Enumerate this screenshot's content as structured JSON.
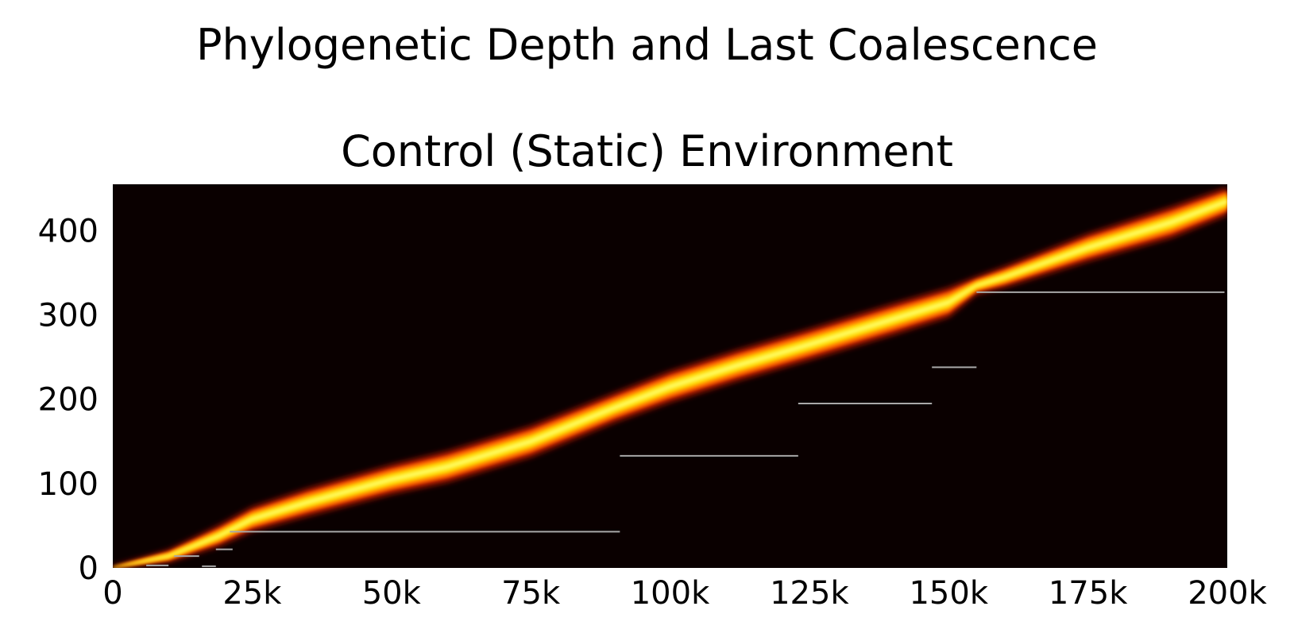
{
  "chart_data": {
    "type": "heatmap",
    "title": "Phylogenetic Depth and Last Coalescence",
    "subtitle": "Control (Static) Environment",
    "xlabel": "",
    "ylabel": "",
    "xlim": [
      0,
      200000
    ],
    "ylim": [
      0,
      455
    ],
    "x_ticks": [
      {
        "value": 0,
        "label": "0"
      },
      {
        "value": 25000,
        "label": "25k"
      },
      {
        "value": 50000,
        "label": "50k"
      },
      {
        "value": 75000,
        "label": "75k"
      },
      {
        "value": 100000,
        "label": "100k"
      },
      {
        "value": 125000,
        "label": "125k"
      },
      {
        "value": 150000,
        "label": "150k"
      },
      {
        "value": 175000,
        "label": "175k"
      },
      {
        "value": 200000,
        "label": "200k"
      }
    ],
    "y_ticks": [
      {
        "value": 0,
        "label": "0"
      },
      {
        "value": 100,
        "label": "100"
      },
      {
        "value": 200,
        "label": "200"
      },
      {
        "value": 300,
        "label": "300"
      },
      {
        "value": 400,
        "label": "400"
      }
    ],
    "grid": false,
    "colors": {
      "background": "#0a0000",
      "band_outer": "#c41a00",
      "band_mid": "#ff6a00",
      "band_core": "#ffd400",
      "band_peak": "#ffff66",
      "coalescence_line": "#a8a8a8"
    },
    "depth_band": [
      {
        "x": 0,
        "center": 0,
        "spread": 2
      },
      {
        "x": 10000,
        "center": 14,
        "spread": 7
      },
      {
        "x": 19000,
        "center": 38,
        "spread": 12
      },
      {
        "x": 25000,
        "center": 58,
        "spread": 14
      },
      {
        "x": 35000,
        "center": 78,
        "spread": 16
      },
      {
        "x": 50000,
        "center": 105,
        "spread": 17
      },
      {
        "x": 60000,
        "center": 120,
        "spread": 18
      },
      {
        "x": 75000,
        "center": 150,
        "spread": 18
      },
      {
        "x": 90000,
        "center": 190,
        "spread": 17
      },
      {
        "x": 100000,
        "center": 215,
        "spread": 18
      },
      {
        "x": 112000,
        "center": 240,
        "spread": 18
      },
      {
        "x": 125000,
        "center": 265,
        "spread": 18
      },
      {
        "x": 140000,
        "center": 295,
        "spread": 18
      },
      {
        "x": 150000,
        "center": 315,
        "spread": 17
      },
      {
        "x": 155000,
        "center": 335,
        "spread": 10
      },
      {
        "x": 160000,
        "center": 345,
        "spread": 12
      },
      {
        "x": 175000,
        "center": 380,
        "spread": 16
      },
      {
        "x": 190000,
        "center": 410,
        "spread": 18
      },
      {
        "x": 200000,
        "center": 435,
        "spread": 16
      }
    ],
    "coalescence_segments": [
      {
        "x_start": 6000,
        "x_end": 10000,
        "y": 3
      },
      {
        "x_start": 11000,
        "x_end": 15500,
        "y": 14
      },
      {
        "x_start": 16000,
        "x_end": 18500,
        "y": 2
      },
      {
        "x_start": 18500,
        "x_end": 21500,
        "y": 22
      },
      {
        "x_start": 21000,
        "x_end": 91000,
        "y": 43
      },
      {
        "x_start": 91000,
        "x_end": 123000,
        "y": 133
      },
      {
        "x_start": 123000,
        "x_end": 147000,
        "y": 195
      },
      {
        "x_start": 147000,
        "x_end": 155000,
        "y": 238
      },
      {
        "x_start": 155000,
        "x_end": 199500,
        "y": 327
      }
    ]
  }
}
